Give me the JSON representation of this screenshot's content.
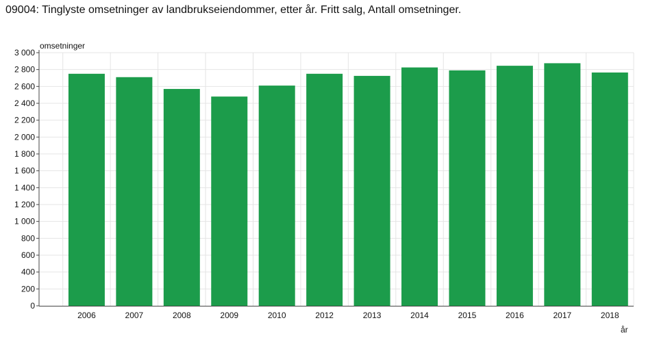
{
  "title": "09004: Tinglyste omsetninger av landbrukseiendommer, etter år. Fritt salg, Antall omsetninger.",
  "colors": {
    "bar": "#1c9c4b",
    "grid": "#e4e4e4",
    "axis": "#444444"
  },
  "chart_data": {
    "type": "bar",
    "title": "09004: Tinglyste omsetninger av landbrukseiendommer, etter år. Fritt salg, Antall omsetninger.",
    "xlabel": "år",
    "ylabel": "omsetninger",
    "categories": [
      "2006",
      "2007",
      "2008",
      "2009",
      "2010",
      "2012",
      "2013",
      "2014",
      "2015",
      "2016",
      "2017",
      "2018"
    ],
    "values": [
      2750,
      2710,
      2570,
      2480,
      2610,
      2750,
      2725,
      2825,
      2790,
      2845,
      2875,
      2765
    ],
    "ylim": [
      0,
      3000
    ],
    "yticks": [
      0,
      200,
      400,
      600,
      800,
      1000,
      1200,
      1400,
      1600,
      1800,
      2000,
      2200,
      2400,
      2600,
      2800,
      3000
    ],
    "ytick_labels": [
      "0",
      "200",
      "400",
      "600",
      "800",
      "1 000",
      "1 200",
      "1 400",
      "1 600",
      "1 800",
      "2 000",
      "2 200",
      "2 400",
      "2 600",
      "2 800",
      "3 000"
    ],
    "grid": true,
    "legend": "none"
  }
}
